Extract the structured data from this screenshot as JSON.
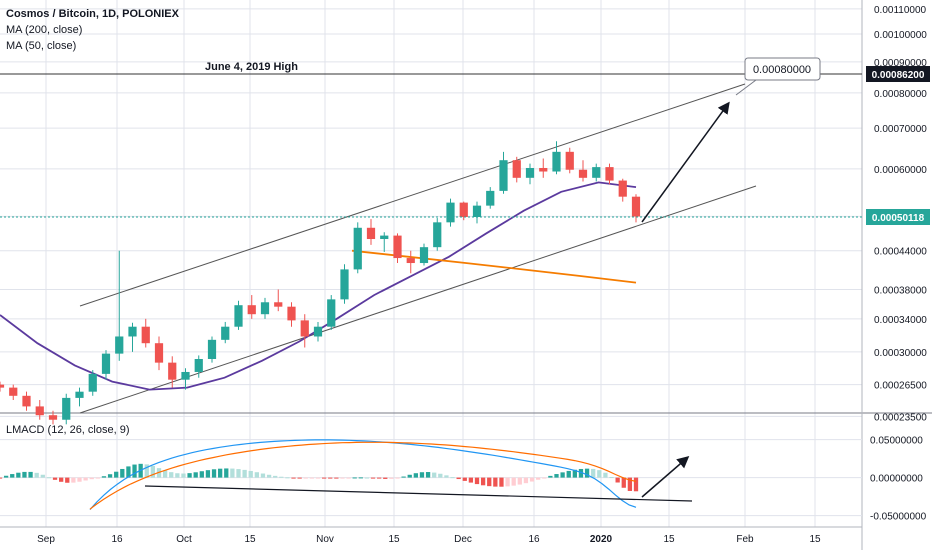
{
  "legend": {
    "title": "Cosmos / Bitcoin, 1D, POLONIEX",
    "indicators": [
      "MA (200, close)",
      "MA (50, close)"
    ],
    "macd": "LMACD (12, 26, close, 9)"
  },
  "annotations": {
    "high_label": "June 4, 2019 High",
    "target_value": "0.00080000",
    "high_value": "0.00086200",
    "last_value": "0.00050118"
  },
  "colors": {
    "up": "#26a69a",
    "down": "#ef5350",
    "ma200": "#f57c00",
    "ma50": "#5b3a9e",
    "macd": "#2196f3",
    "signal": "#ff6d00",
    "grid": "#e0e3eb",
    "channel": "#555555"
  },
  "chart_data": [
    {
      "type": "candlestick",
      "title": "Cosmos / Bitcoin, 1D, POLONIEX",
      "x_ticks": [
        "Sep",
        "16",
        "Oct",
        "15",
        "Nov",
        "15",
        "Dec",
        "16",
        "2020",
        "15",
        "Feb",
        "15"
      ],
      "y_ticks": [
        "0.00110000",
        "0.00100000",
        "0.00090000",
        "0.00080000",
        "0.00070000",
        "0.00060000",
        "0.00050118",
        "0.00044000",
        "0.00038000",
        "0.00034000",
        "0.00030000",
        "0.00026500",
        "0.00023500"
      ],
      "ylim": [
        0.00021,
        0.00115
      ],
      "y_scale": "log",
      "candles_approx": [
        [
          0.000265,
          0.000268,
          0.000258,
          0.000262
        ],
        [
          0.000262,
          0.000265,
          0.00025,
          0.000254
        ],
        [
          0.000254,
          0.000258,
          0.00024,
          0.000244
        ],
        [
          0.000244,
          0.00025,
          0.000232,
          0.000236
        ],
        [
          0.000236,
          0.00024,
          0.000228,
          0.000232
        ],
        [
          0.000232,
          0.000256,
          0.000228,
          0.000252
        ],
        [
          0.000252,
          0.000262,
          0.000244,
          0.000258
        ],
        [
          0.000258,
          0.00028,
          0.000254,
          0.000276
        ],
        [
          0.000276,
          0.000302,
          0.00027,
          0.000298
        ],
        [
          0.000298,
          0.00044,
          0.00029,
          0.000318
        ],
        [
          0.000318,
          0.000335,
          0.0003,
          0.00033
        ],
        [
          0.00033,
          0.00034,
          0.000305,
          0.00031
        ],
        [
          0.00031,
          0.000318,
          0.00028,
          0.000288
        ],
        [
          0.000288,
          0.000295,
          0.000262,
          0.00027
        ],
        [
          0.00027,
          0.000282,
          0.00026,
          0.000278
        ],
        [
          0.000278,
          0.000296,
          0.000272,
          0.000292
        ],
        [
          0.000292,
          0.000318,
          0.000288,
          0.000314
        ],
        [
          0.000314,
          0.000336,
          0.00031,
          0.00033
        ],
        [
          0.00033,
          0.000364,
          0.000326,
          0.000358
        ],
        [
          0.000358,
          0.000372,
          0.00034,
          0.000346
        ],
        [
          0.000346,
          0.000368,
          0.00034,
          0.000362
        ],
        [
          0.000362,
          0.00038,
          0.00035,
          0.000356
        ],
        [
          0.000356,
          0.000362,
          0.00033,
          0.000338
        ],
        [
          0.000338,
          0.000346,
          0.000305,
          0.000318
        ],
        [
          0.000318,
          0.000336,
          0.000312,
          0.00033
        ],
        [
          0.00033,
          0.000372,
          0.000326,
          0.000366
        ],
        [
          0.000366,
          0.000418,
          0.00036,
          0.00041
        ],
        [
          0.00041,
          0.00049,
          0.000404,
          0.00048
        ],
        [
          0.00048,
          0.000496,
          0.00045,
          0.00046
        ],
        [
          0.00046,
          0.000472,
          0.000438,
          0.000466
        ],
        [
          0.000466,
          0.00047,
          0.00042,
          0.000428
        ],
        [
          0.000428,
          0.00044,
          0.000404,
          0.00042
        ],
        [
          0.00042,
          0.000452,
          0.000416,
          0.000446
        ],
        [
          0.000446,
          0.000498,
          0.00044,
          0.00049
        ],
        [
          0.00049,
          0.000536,
          0.000482,
          0.000528
        ],
        [
          0.000528,
          0.00053,
          0.000494,
          0.0005
        ],
        [
          0.0005,
          0.00053,
          0.000488,
          0.000522
        ],
        [
          0.000522,
          0.00056,
          0.000516,
          0.000552
        ],
        [
          0.000552,
          0.00064,
          0.000546,
          0.00062
        ],
        [
          0.00062,
          0.000628,
          0.00057,
          0.00058
        ],
        [
          0.00058,
          0.000612,
          0.000566,
          0.000602
        ],
        [
          0.000602,
          0.000624,
          0.00058,
          0.000594
        ],
        [
          0.000594,
          0.000666,
          0.000588,
          0.00064
        ],
        [
          0.00064,
          0.00065,
          0.00059,
          0.000598
        ],
        [
          0.000598,
          0.00062,
          0.000572,
          0.00058
        ],
        [
          0.00058,
          0.000612,
          0.000572,
          0.000604
        ],
        [
          0.000604,
          0.000612,
          0.000566,
          0.000574
        ],
        [
          0.000574,
          0.000578,
          0.00053,
          0.00054
        ],
        [
          0.00054,
          0.000545,
          0.00049,
          0.000501
        ]
      ],
      "ma200_approx": [
        0.00044,
        0.00043,
        0.00042,
        0.00041,
        0.0004,
        0.00039
      ],
      "ma50_approx": [
        0.000345,
        0.00031,
        0.000285,
        0.000268,
        0.00026,
        0.000262,
        0.000272,
        0.00029,
        0.000312,
        0.00034,
        0.000372,
        0.0004,
        0.00043,
        0.00047,
        0.000512,
        0.00055,
        0.00057,
        0.00056
      ]
    },
    {
      "type": "bar",
      "title": "LMACD (12, 26, close, 9)",
      "y_ticks": [
        "0.05000000",
        "0.00000000",
        "-0.05000000"
      ],
      "ylim": [
        -0.065,
        0.085
      ]
    }
  ]
}
